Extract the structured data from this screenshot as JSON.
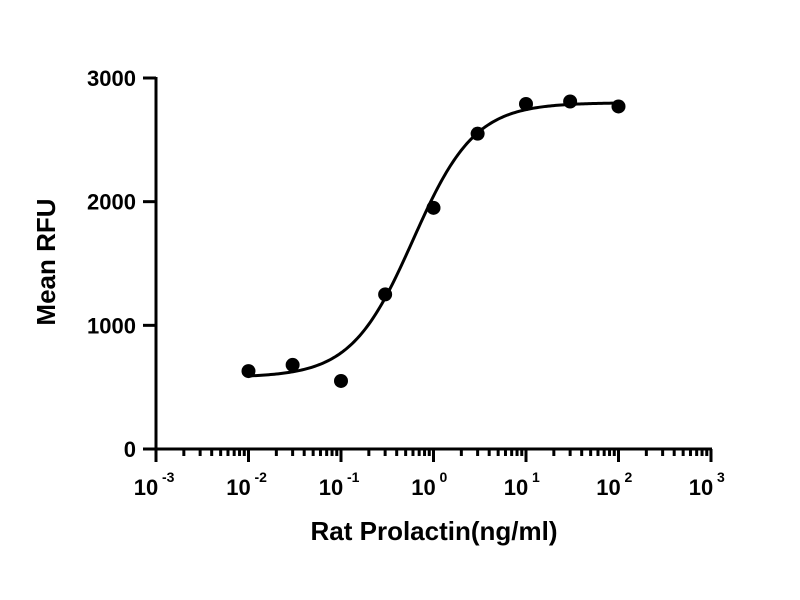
{
  "chart_data": {
    "type": "scatter",
    "title": "",
    "xlabel": "Rat Prolactin(ng/ml)",
    "ylabel": "Mean RFU",
    "x_scale": "log",
    "xlim": [
      0.001,
      1000
    ],
    "ylim": [
      0,
      3000
    ],
    "grid": false,
    "x_ticks": [
      {
        "value": 0.001,
        "base": "10",
        "exp": "-3"
      },
      {
        "value": 0.01,
        "base": "10",
        "exp": "-2"
      },
      {
        "value": 0.1,
        "base": "10",
        "exp": "-1"
      },
      {
        "value": 1,
        "base": "10",
        "exp": "0"
      },
      {
        "value": 10,
        "base": "10",
        "exp": "1"
      },
      {
        "value": 100,
        "base": "10",
        "exp": "2"
      },
      {
        "value": 1000,
        "base": "10",
        "exp": "3"
      }
    ],
    "y_ticks": [
      {
        "value": 0,
        "label": "0"
      },
      {
        "value": 1000,
        "label": "1000"
      },
      {
        "value": 2000,
        "label": "2000"
      },
      {
        "value": 3000,
        "label": "3000"
      }
    ],
    "series": [
      {
        "points": [
          {
            "x": 0.01,
            "y": 630
          },
          {
            "x": 0.03,
            "y": 680
          },
          {
            "x": 0.1,
            "y": 550
          },
          {
            "x": 0.3,
            "y": 1250
          },
          {
            "x": 1,
            "y": 1950
          },
          {
            "x": 3,
            "y": 2550
          },
          {
            "x": 10,
            "y": 2790
          },
          {
            "x": 30,
            "y": 2810
          },
          {
            "x": 100,
            "y": 2770
          }
        ],
        "fit": {
          "model": "4PL",
          "bottom": 580,
          "top": 2800,
          "ec50": 0.6,
          "hill": 1.3,
          "x_range": [
            0.01,
            100
          ]
        }
      }
    ]
  }
}
